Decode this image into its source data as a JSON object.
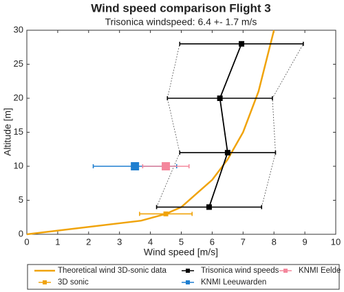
{
  "chart_data": {
    "type": "scatter",
    "title": "Wind speed comparison Flight 3",
    "subtitle": "Trisonica windspeed: 6.4 +- 1.7 m/s",
    "x_label": "Wind speed [m/s]",
    "y_label": "Altitude [m]",
    "xlim": [
      0,
      10
    ],
    "ylim": [
      0,
      30
    ],
    "xticks": [
      0,
      1,
      2,
      3,
      4,
      5,
      6,
      7,
      8,
      9,
      10
    ],
    "yticks": [
      0,
      5,
      10,
      15,
      20,
      25,
      30
    ],
    "grid": false,
    "series": [
      {
        "name": "Theoretical wind 3D-sonic data",
        "color": "#f0a30a",
        "style": "line",
        "x": [
          0,
          3.7,
          4.5,
          5.0,
          5.5,
          6.0,
          6.5,
          7.0,
          7.5,
          8.0
        ],
        "y": [
          0,
          2,
          3,
          4,
          6,
          8,
          11,
          15,
          21,
          30
        ]
      },
      {
        "name": "Trisonica wind speeds",
        "color": "#000000",
        "style": "line-errorbar",
        "x": [
          5.9,
          6.5,
          6.25,
          6.95
        ],
        "y": [
          4,
          12,
          20,
          28
        ],
        "xerr": [
          1.7,
          1.55,
          1.7,
          2.0
        ]
      },
      {
        "name": "3D sonic",
        "color": "#f0a30a",
        "style": "errorbar",
        "x": [
          4.5
        ],
        "y": [
          3
        ],
        "xerr": [
          0.85
        ]
      },
      {
        "name": "KNMI Leeuwarden",
        "color": "#1f7fd0",
        "style": "errorbar",
        "x": [
          3.5
        ],
        "y": [
          10
        ],
        "xerr": [
          1.35
        ]
      },
      {
        "name": "KNMI Eelde",
        "color": "#f4879c",
        "style": "errorbar",
        "x": [
          4.5
        ],
        "y": [
          10
        ],
        "xerr": [
          0.75
        ]
      }
    ]
  }
}
